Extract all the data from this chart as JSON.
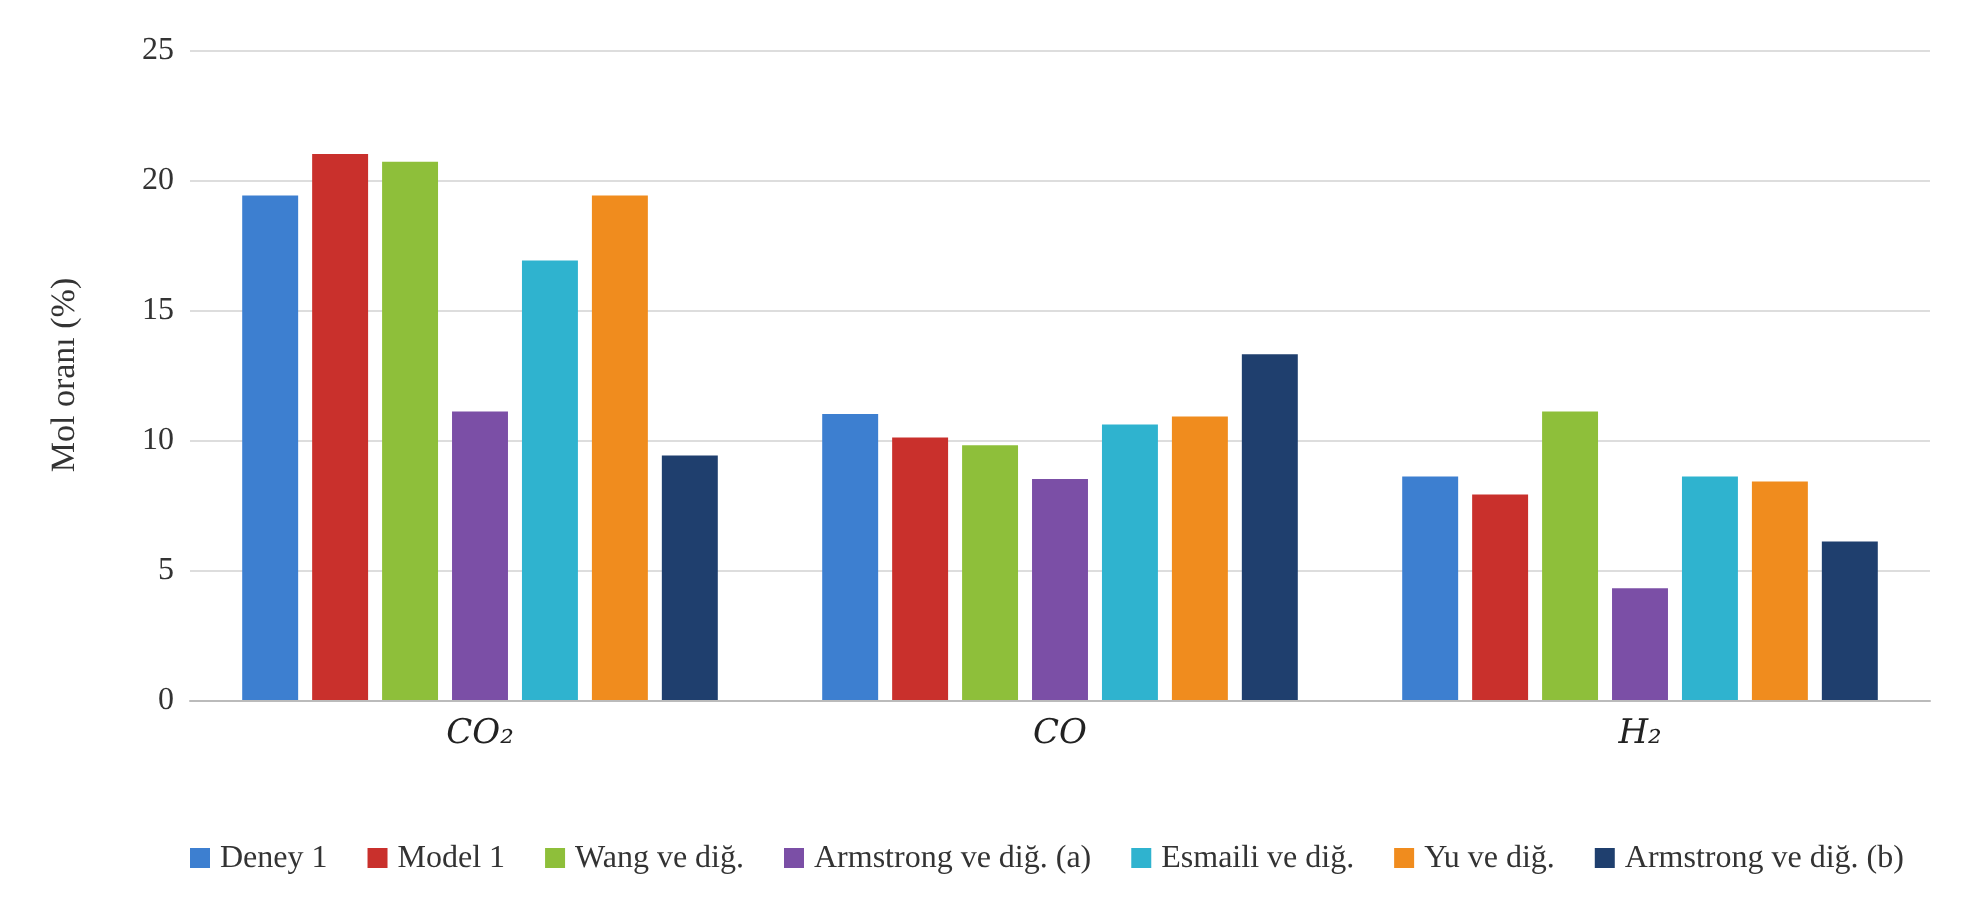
{
  "chart_data": {
    "type": "bar",
    "ylabel": "Mol oranı (%)",
    "categories": [
      "CO₂",
      "CO",
      "H₂"
    ],
    "series": [
      {
        "name": "Deney 1",
        "color": "#3d7fd0",
        "values": [
          19.4,
          11.0,
          8.6
        ]
      },
      {
        "name": "Model 1",
        "color": "#c9302c",
        "values": [
          21.0,
          10.1,
          7.9
        ]
      },
      {
        "name": "Wang ve diğ.",
        "color": "#8ebf3a",
        "values": [
          20.7,
          9.8,
          11.1
        ]
      },
      {
        "name": "Armstrong ve diğ. (a)",
        "color": "#7b4fa6",
        "values": [
          11.1,
          8.5,
          4.3
        ]
      },
      {
        "name": "Esmaili ve diğ.",
        "color": "#2fb3cf",
        "values": [
          16.9,
          10.6,
          8.6
        ]
      },
      {
        "name": "Yu ve diğ.",
        "color": "#f08c1e",
        "values": [
          19.4,
          10.9,
          8.4
        ]
      },
      {
        "name": "Armstrong ve diğ. (b)",
        "color": "#1f3f6e",
        "values": [
          9.4,
          13.3,
          6.1
        ]
      }
    ],
    "ylim": [
      0,
      25
    ],
    "yticks": [
      0,
      5,
      10,
      15,
      20,
      25
    ],
    "grid": "y",
    "legend": "bottom"
  }
}
